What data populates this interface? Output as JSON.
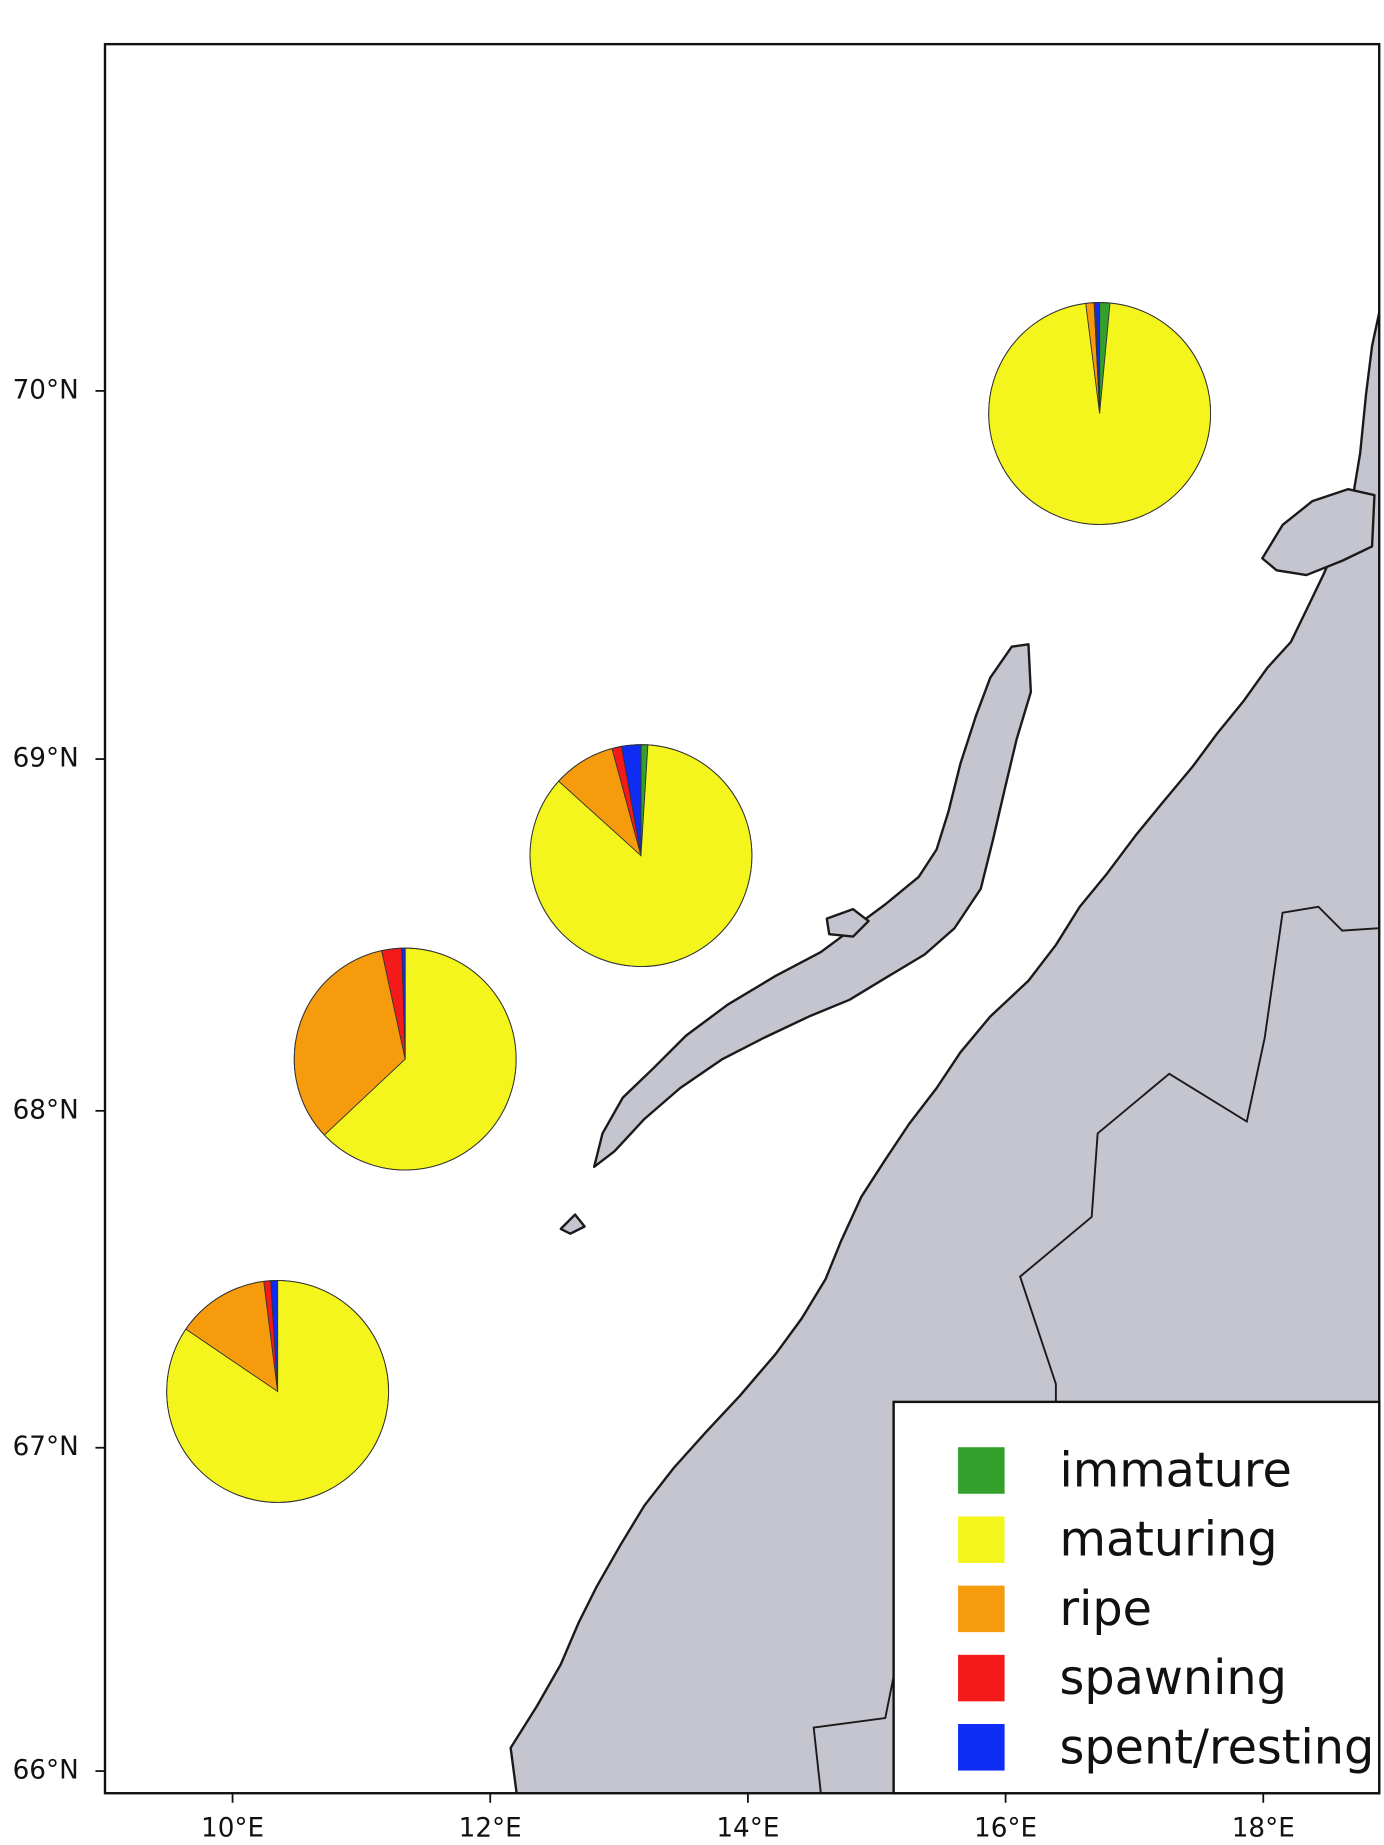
{
  "chart_data": {
    "type": "pie",
    "categories": [
      "immature",
      "maturing",
      "ripe",
      "spawning",
      "spent/resting"
    ],
    "colors": [
      "#33a02c",
      "#f5f51e",
      "#f59b0c",
      "#f51a1a",
      "#0f2cf5"
    ],
    "pies": [
      {
        "lon": 16.73,
        "lat": 69.94,
        "values": [
          1.5,
          96.5,
          1.2,
          0.2,
          0.6
        ]
      },
      {
        "lon": 13.17,
        "lat": 68.73,
        "values": [
          1,
          85.7,
          9.1,
          1.4,
          2.8
        ]
      },
      {
        "lon": 11.34,
        "lat": 68.15,
        "values": [
          0,
          63,
          33.6,
          2.9,
          0.5
        ]
      },
      {
        "lon": 10.35,
        "lat": 67.17,
        "values": [
          0,
          84.5,
          13.5,
          1,
          1
        ]
      }
    ],
    "xlim": [
      9.01,
      18.9
    ],
    "ylim": [
      65.93,
      70.9
    ],
    "xticks": [
      {
        "value": 10,
        "label": "10°E"
      },
      {
        "value": 12,
        "label": "12°E"
      },
      {
        "value": 14,
        "label": "14°E"
      },
      {
        "value": 16,
        "label": "16°E"
      },
      {
        "value": 18,
        "label": "18°E"
      }
    ],
    "yticks": [
      {
        "value": 66,
        "label": "66°N"
      },
      {
        "value": 67,
        "label": "67°N"
      },
      {
        "value": 68,
        "label": "68°N"
      },
      {
        "value": 69,
        "label": "69°N"
      },
      {
        "value": 70,
        "label": "70°N"
      }
    ],
    "projection": "mercator",
    "legend": "lower right"
  }
}
